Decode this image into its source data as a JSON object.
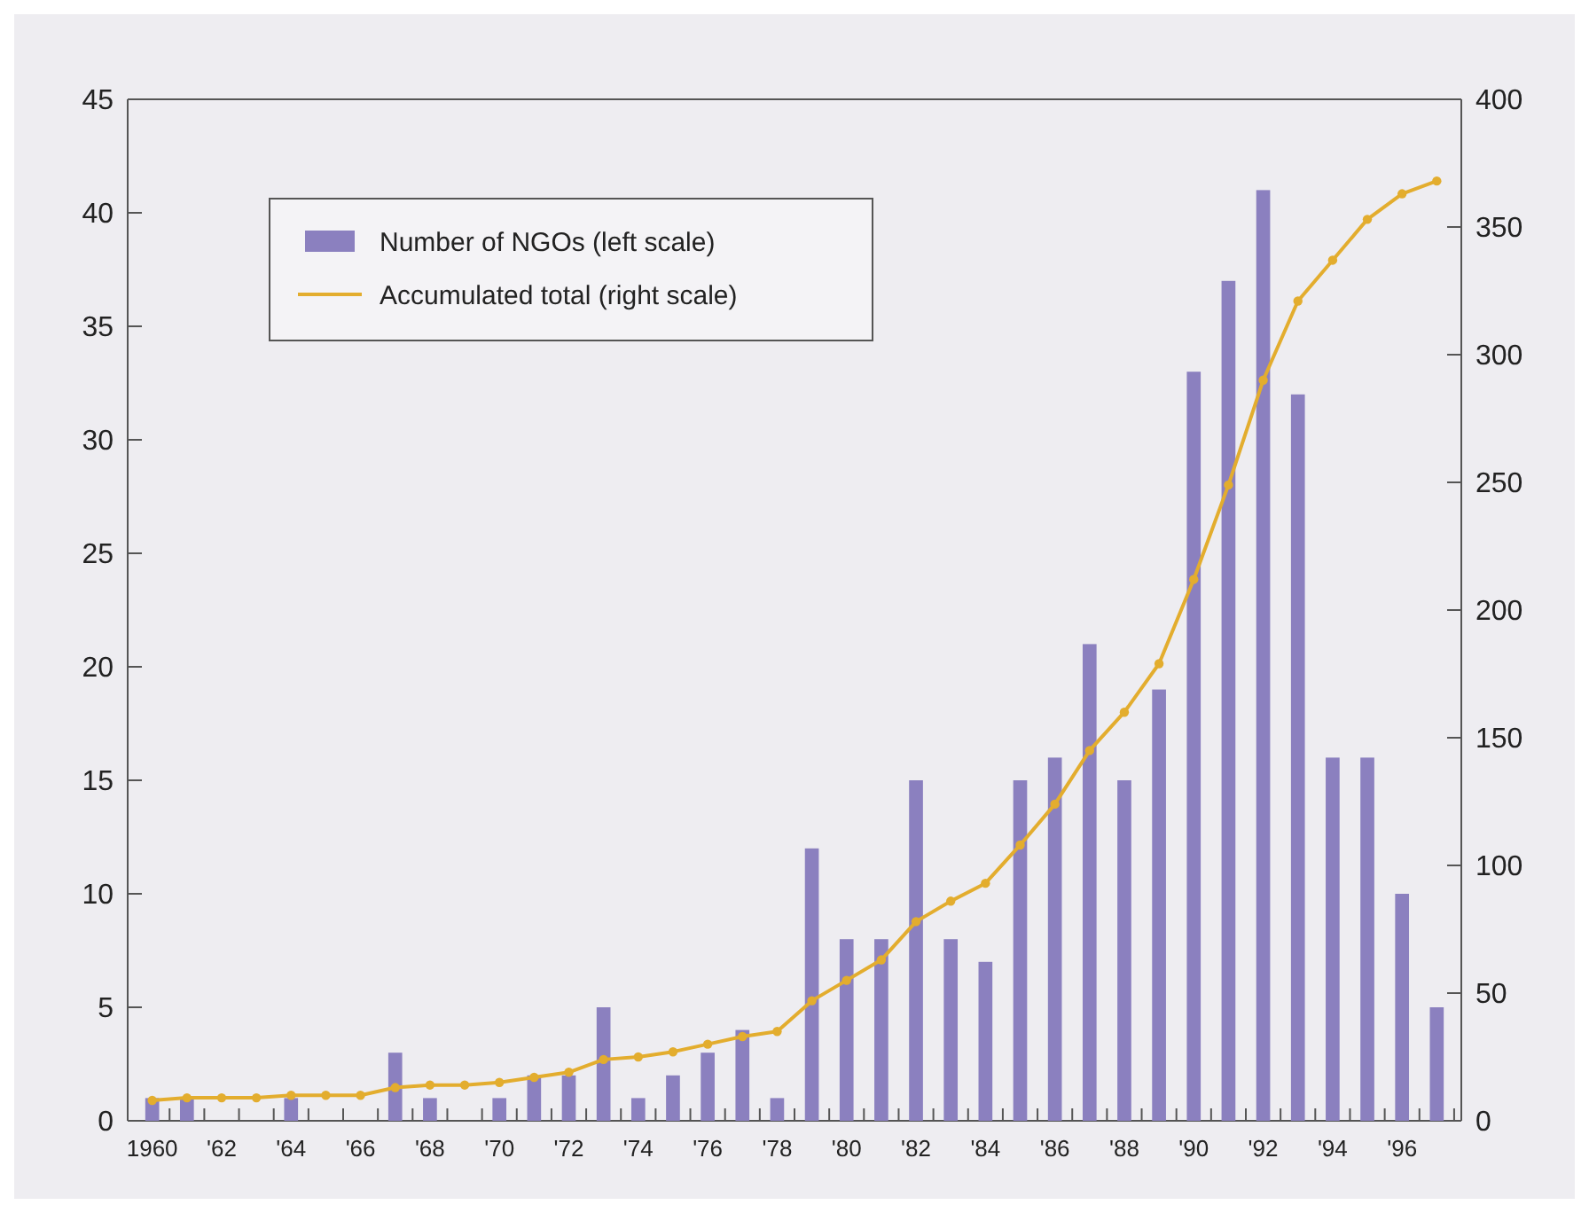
{
  "chart_data": {
    "type": "bar",
    "categories": [
      "1960",
      null,
      "'62",
      null,
      "'64",
      null,
      "'66",
      null,
      "'68",
      null,
      "'70",
      null,
      "'72",
      null,
      "'74",
      null,
      "'76",
      null,
      "'78",
      null,
      "'80",
      null,
      "'82",
      null,
      "'84",
      null,
      "'86",
      null,
      "'88",
      null,
      "'90",
      null,
      "'92",
      null,
      "'94",
      null,
      "'96",
      null
    ],
    "series": [
      {
        "name": "Number of NGOs (left scale)",
        "color": "#8b80bf",
        "values": [
          1,
          1,
          0,
          0,
          1,
          0,
          0,
          3,
          1,
          0,
          1,
          2,
          2,
          5,
          1,
          2,
          3,
          4,
          1,
          12,
          8,
          8,
          15,
          8,
          7,
          15,
          16,
          21,
          15,
          19,
          33,
          37,
          41,
          32,
          16,
          16,
          10,
          5
        ]
      },
      {
        "name": "Accumulated total (right scale)",
        "type": "line",
        "axis": "y2",
        "color": "#e3ad2e",
        "values": [
          8,
          9,
          9,
          9,
          10,
          10,
          10,
          13,
          14,
          14,
          15,
          17,
          19,
          24,
          25,
          27,
          30,
          33,
          35,
          47,
          55,
          63,
          78,
          86,
          93,
          108,
          124,
          145,
          160,
          179,
          212,
          249,
          290,
          321,
          337,
          353,
          363,
          368
        ]
      }
    ],
    "ylim": [
      0,
      45
    ],
    "yticks": [
      0,
      5,
      10,
      15,
      20,
      25,
      30,
      35,
      40,
      45
    ],
    "y2lim": [
      0,
      400
    ],
    "y2ticks": [
      0,
      50,
      100,
      150,
      200,
      250,
      300,
      350,
      400
    ],
    "legend": "top left",
    "marker": "circle",
    "grid": false
  }
}
